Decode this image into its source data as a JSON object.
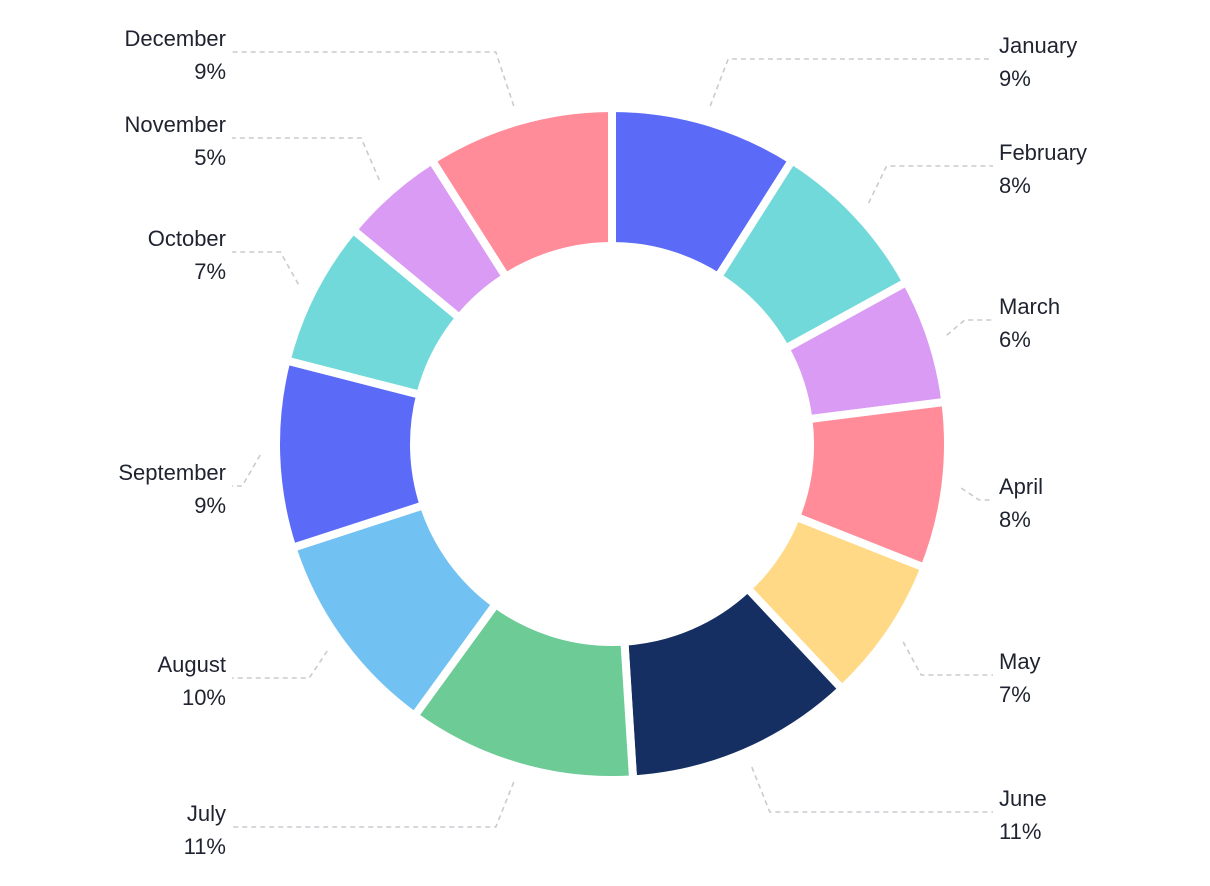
{
  "chart_data": {
    "type": "pie",
    "variant": "donut",
    "title": "",
    "legend": "none",
    "categories": [
      "January",
      "February",
      "March",
      "April",
      "May",
      "June",
      "July",
      "August",
      "September",
      "October",
      "November",
      "December"
    ],
    "values": [
      9,
      8,
      6,
      8,
      7,
      11,
      11,
      10,
      9,
      7,
      5,
      9
    ],
    "value_labels": [
      "9%",
      "8%",
      "6%",
      "8%",
      "7%",
      "11%",
      "11%",
      "10%",
      "9%",
      "7%",
      "5%",
      "9%"
    ],
    "colors": [
      "#5b6bf8",
      "#72d9da",
      "#d99bf3",
      "#ff8c98",
      "#ffd985",
      "#162f63",
      "#6dcb96",
      "#71c1f2",
      "#5b6bf8",
      "#72d9da",
      "#d99bf3",
      "#ff8c98"
    ]
  }
}
